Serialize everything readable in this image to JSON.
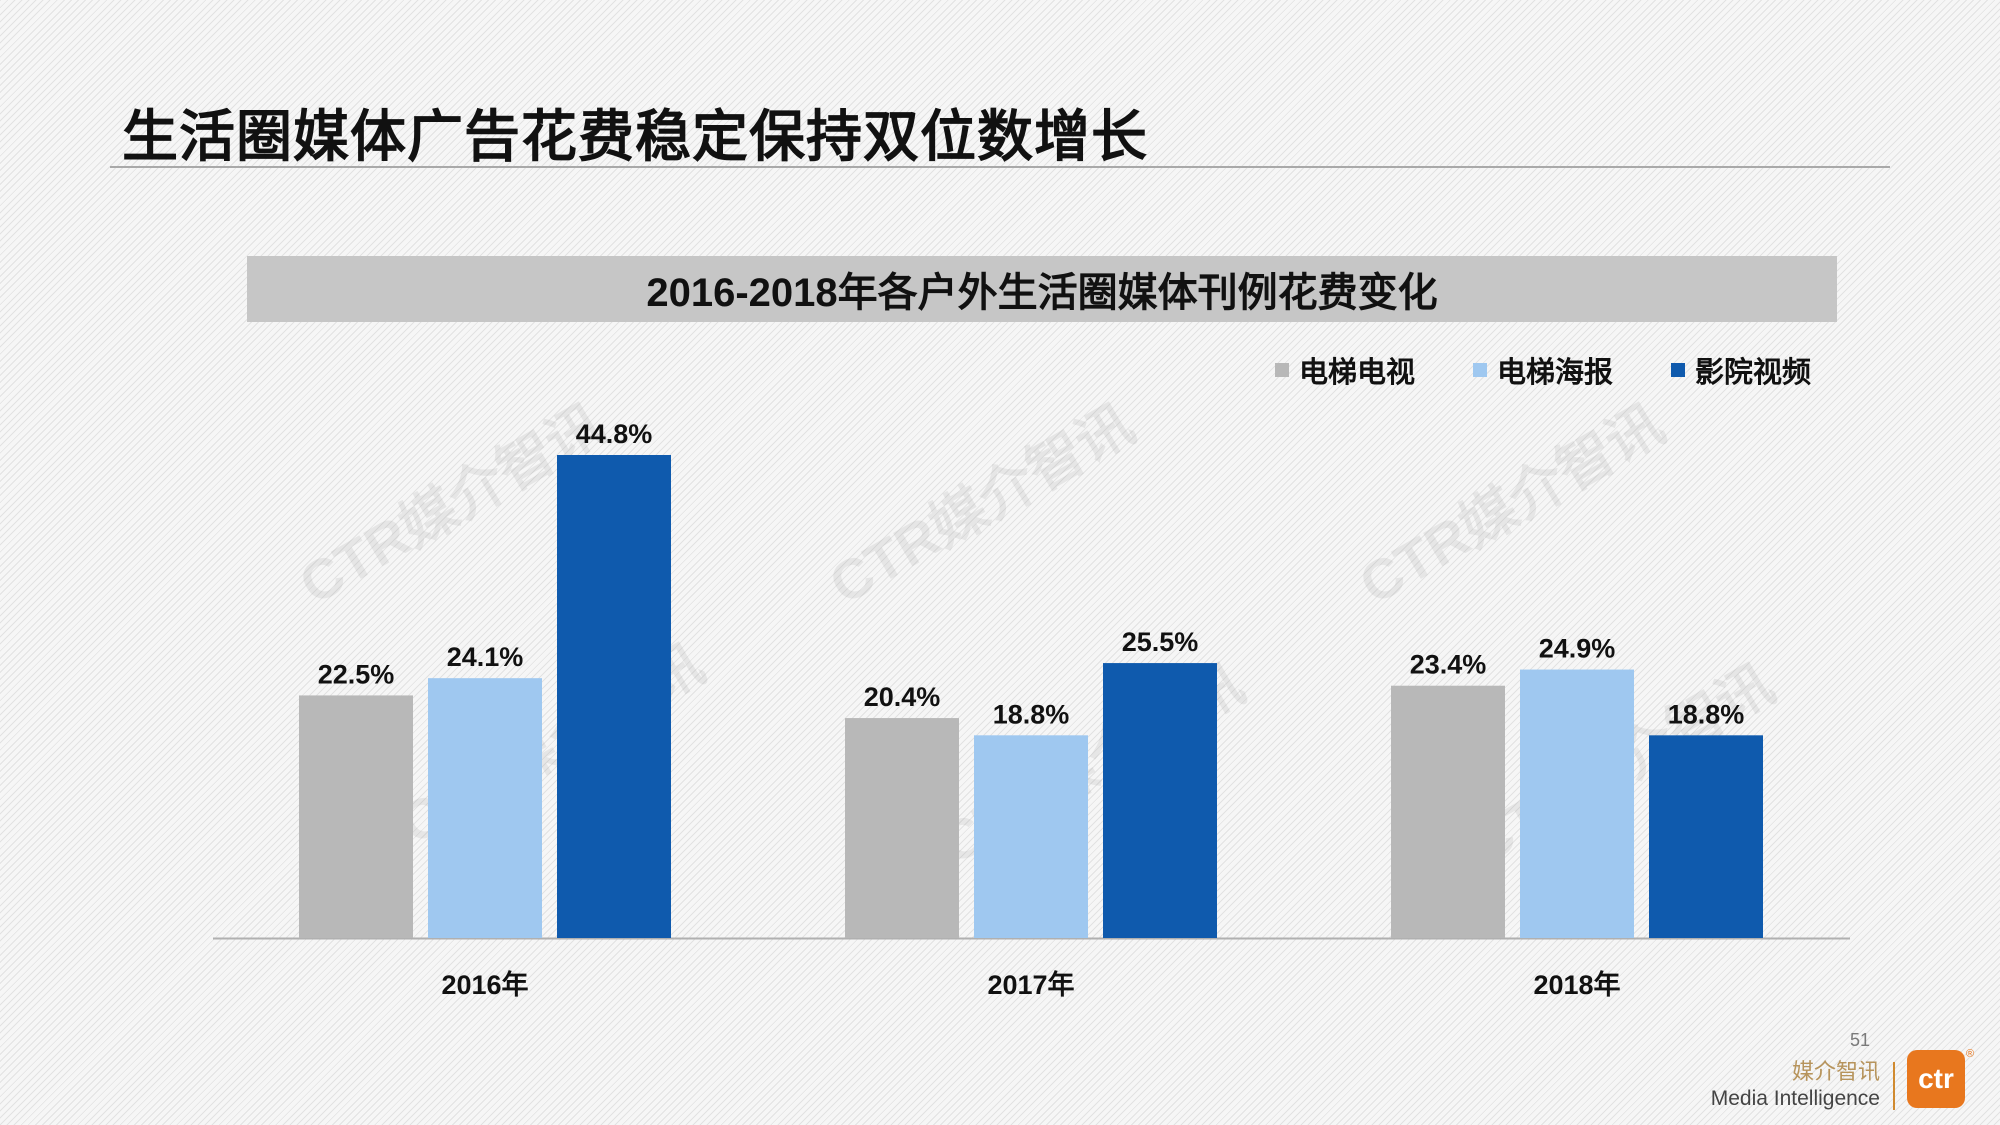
{
  "page": {
    "title": "生活圈媒体广告花费稳定保持双位数增长",
    "page_number": "51",
    "brand_cn": "媒介智讯",
    "brand_en": "Media Intelligence",
    "logo_text": "ctr",
    "logo_mark": "®",
    "watermark": "CTR媒介智讯"
  },
  "chart_data": {
    "type": "bar",
    "title": "2016-2018年各户外生活圈媒体刊例花费变化",
    "categories": [
      "2016年",
      "2017年",
      "2018年"
    ],
    "series": [
      {
        "name": "电梯电视",
        "color": "#b8b8b8",
        "values": [
          22.5,
          20.4,
          23.4
        ],
        "labels": [
          "22.5%",
          "20.4%",
          "23.4%"
        ]
      },
      {
        "name": "电梯海报",
        "color": "#9fc8f0",
        "values": [
          24.1,
          18.8,
          24.9
        ],
        "labels": [
          "24.1%",
          "18.8%",
          "24.9%"
        ]
      },
      {
        "name": "影院视频",
        "color": "#0f5aad",
        "values": [
          44.8,
          25.5,
          18.8
        ],
        "labels": [
          "44.8%",
          "25.5%",
          "18.8%"
        ]
      }
    ],
    "ylim": [
      0,
      44.8
    ],
    "grid": false,
    "legend_position": "top-right"
  }
}
